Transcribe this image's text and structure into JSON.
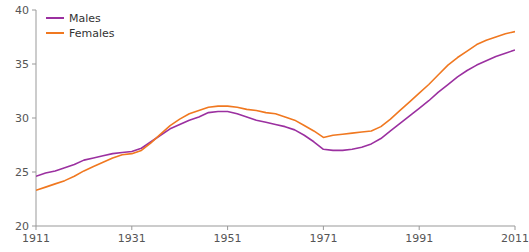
{
  "chart_data": {
    "type": "line",
    "x": [
      1911,
      1913,
      1915,
      1917,
      1919,
      1921,
      1923,
      1925,
      1927,
      1929,
      1931,
      1933,
      1935,
      1937,
      1939,
      1941,
      1943,
      1945,
      1947,
      1949,
      1951,
      1953,
      1955,
      1957,
      1959,
      1961,
      1963,
      1965,
      1967,
      1969,
      1971,
      1973,
      1975,
      1977,
      1979,
      1981,
      1983,
      1985,
      1987,
      1989,
      1991,
      1993,
      1995,
      1997,
      1999,
      2001,
      2003,
      2005,
      2007,
      2009,
      2011
    ],
    "series": [
      {
        "name": "Males",
        "color": "#9b30a0",
        "values": [
          24.6,
          24.9,
          25.1,
          25.4,
          25.7,
          26.1,
          26.3,
          26.5,
          26.7,
          26.8,
          26.9,
          27.2,
          27.8,
          28.4,
          29.0,
          29.4,
          29.8,
          30.1,
          30.5,
          30.6,
          30.6,
          30.4,
          30.1,
          29.8,
          29.6,
          29.4,
          29.2,
          28.9,
          28.4,
          27.8,
          27.1,
          27.0,
          27.0,
          27.1,
          27.3,
          27.6,
          28.1,
          28.8,
          29.5,
          30.2,
          30.9,
          31.6,
          32.4,
          33.1,
          33.8,
          34.4,
          34.9,
          35.3,
          35.7,
          36.0,
          36.3
        ]
      },
      {
        "name": "Females",
        "color": "#f07820",
        "values": [
          23.3,
          23.6,
          23.9,
          24.2,
          24.6,
          25.1,
          25.5,
          25.9,
          26.3,
          26.6,
          26.7,
          27.0,
          27.7,
          28.5,
          29.3,
          29.9,
          30.4,
          30.7,
          31.0,
          31.1,
          31.1,
          31.0,
          30.8,
          30.7,
          30.5,
          30.4,
          30.1,
          29.8,
          29.3,
          28.8,
          28.2,
          28.4,
          28.5,
          28.6,
          28.7,
          28.8,
          29.2,
          29.9,
          30.7,
          31.5,
          32.3,
          33.1,
          34.0,
          34.9,
          35.6,
          36.2,
          36.8,
          37.2,
          37.5,
          37.8,
          38.0
        ]
      }
    ],
    "xlim": [
      1911,
      2011
    ],
    "ylim": [
      20,
      40
    ],
    "xticks": [
      1911,
      1931,
      1951,
      1971,
      1991,
      2011
    ],
    "yticks": [
      20,
      25,
      30,
      35,
      40
    ],
    "legend": "upper left",
    "grid": false
  }
}
